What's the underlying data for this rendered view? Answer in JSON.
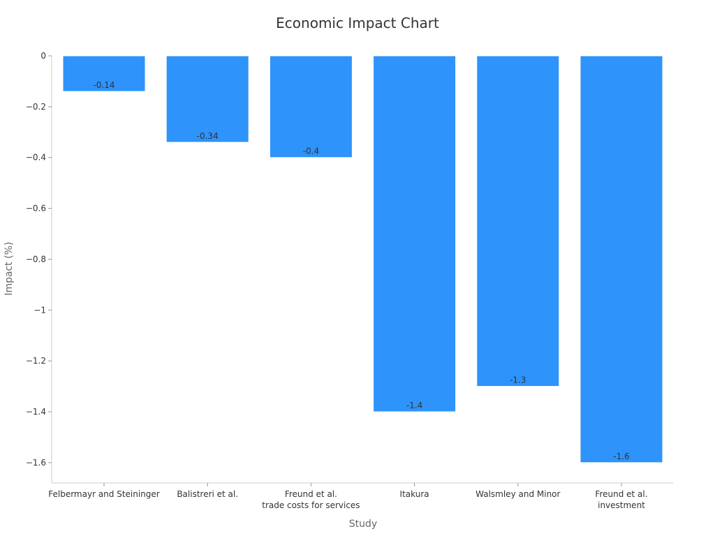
{
  "chart_data": {
    "type": "bar",
    "title": "Economic Impact Chart",
    "xlabel": "Study",
    "ylabel": "Impact (%)",
    "categories": [
      [
        "Felbermayr and Steininger"
      ],
      [
        "Balistreri et al."
      ],
      [
        "Freund et al.",
        "trade costs for services"
      ],
      [
        "Itakura"
      ],
      [
        "Walsmley and Minor"
      ],
      [
        "Freund et al.",
        "investment"
      ]
    ],
    "values": [
      -0.14,
      -0.34,
      -0.4,
      -1.4,
      -1.3,
      -1.6
    ],
    "data_labels": [
      "-0.14",
      "-0.34",
      "-0.4",
      "-1.4",
      "-1.3",
      "-1.6"
    ],
    "ylim": [
      -1.68,
      0
    ],
    "yticks": [
      0,
      -0.2,
      -0.4,
      -0.6,
      -0.8,
      -1,
      -1.2,
      -1.4,
      -1.6
    ],
    "ytick_labels": [
      "0",
      "−0.2",
      "−0.4",
      "−0.6",
      "−0.8",
      "−1",
      "−1.2",
      "−1.4",
      "−1.6"
    ],
    "bar_color": "#2E93FA",
    "grid": false,
    "legend": "none"
  }
}
